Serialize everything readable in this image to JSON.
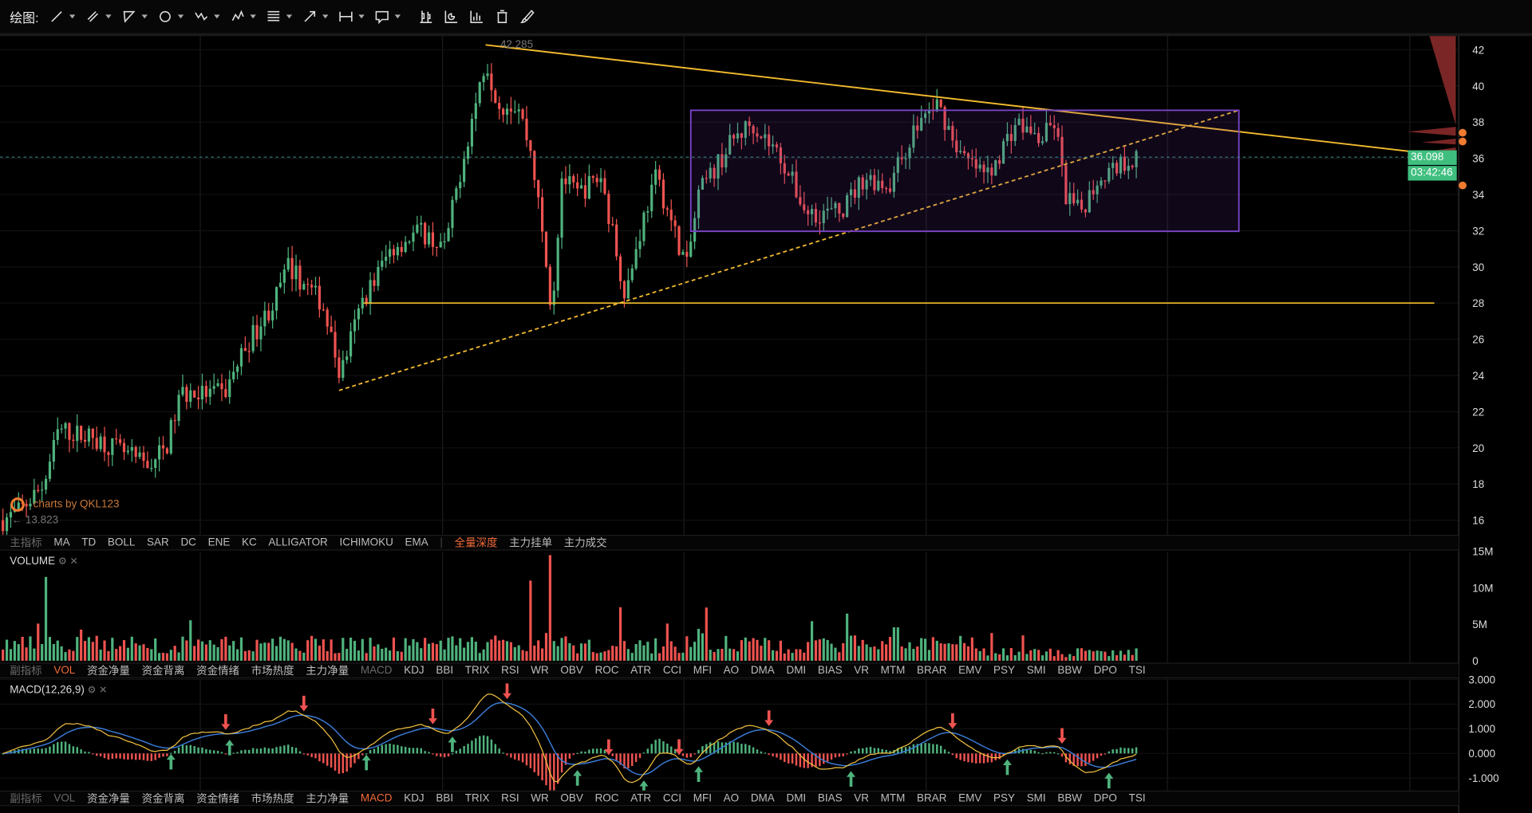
{
  "toolbar": {
    "label": "绘图:",
    "tools": [
      "line-tool",
      "parallel-channel-tool",
      "triangle-tool",
      "ellipse-tool",
      "wave-tool",
      "pattern-tool",
      "fibonacci-tool",
      "arrow-tool",
      "measure-tool",
      "text-note-tool",
      "candle-type-tool",
      "pie-tool",
      "bar-tool",
      "trash-icon",
      "brush-icon"
    ]
  },
  "main": {
    "high_label": "42.285",
    "low_label": "13.823",
    "watermark": "charts by QKL123",
    "price_ticks": [
      "42",
      "40",
      "38",
      "36",
      "34",
      "32",
      "30",
      "28",
      "26",
      "24",
      "22",
      "20",
      "18",
      "16"
    ],
    "last_price": "36.098",
    "countdown": "03:42:46"
  },
  "main_tabs": {
    "items": [
      "主指标",
      "MA",
      "TD",
      "BOLL",
      "SAR",
      "DC",
      "ENE",
      "KC",
      "ALLIGATOR",
      "ICHIMOKU",
      "EMA",
      "|",
      "全量深度",
      "主力挂单",
      "主力成交"
    ],
    "dim": [
      "主指标"
    ],
    "active": [
      "全量深度"
    ]
  },
  "volume": {
    "label": "VOLUME",
    "ticks": [
      "15M",
      "10M",
      "5M",
      "0"
    ]
  },
  "sub_tabs": [
    "副指标",
    "VOL",
    "资金净量",
    "资金背离",
    "资金情绪",
    "市场热度",
    "主力净量",
    "MACD",
    "KDJ",
    "BBI",
    "TRIX",
    "RSI",
    "WR",
    "OBV",
    "ROC",
    "ATR",
    "CCI",
    "MFI",
    "AO",
    "DMA",
    "DMI",
    "BIAS",
    "VR",
    "MTM",
    "BRAR",
    "EMV",
    "PSY",
    "SMI",
    "BBW",
    "DPO",
    "TSI"
  ],
  "macd": {
    "label": "MACD(12,26,9)",
    "ticks": [
      "3.000",
      "2.000",
      "1.000",
      "0.000",
      "-1.000"
    ]
  },
  "colors": {
    "up": "#4fb37d",
    "down": "#ef5350",
    "accent": "#f26b3a",
    "trend": "#f0b92e",
    "box": "#7b45c8",
    "macd": "#f0c040",
    "signal": "#3a7bd5"
  }
}
